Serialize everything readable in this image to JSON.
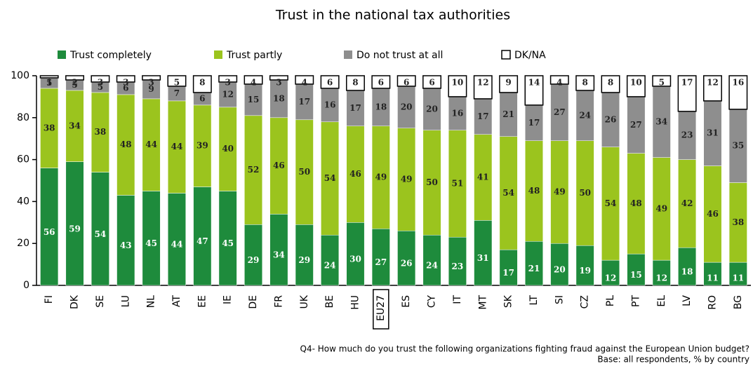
{
  "chart_data": {
    "type": "stacked_bar",
    "title": "Trust in the national tax authorities",
    "footnote": "Q4- How much do you trust the following organizations fighting fraud against the European Union budget?",
    "base": "Base: all respondents, % by country",
    "categories": [
      "FI",
      "DK",
      "SE",
      "LU",
      "NL",
      "AT",
      "EE",
      "IE",
      "DE",
      "FR",
      "UK",
      "BE",
      "HU",
      "EU27",
      "ES",
      "CY",
      "IT",
      "MT",
      "SK",
      "LT",
      "SI",
      "CZ",
      "PL",
      "PT",
      "EL",
      "LV",
      "RO",
      "BG"
    ],
    "series": [
      {
        "name": "Trust completely",
        "color": "#1e8b3c",
        "values": [
          56,
          59,
          54,
          43,
          45,
          44,
          47,
          45,
          29,
          34,
          29,
          24,
          30,
          27,
          26,
          24,
          23,
          31,
          17,
          21,
          20,
          19,
          12,
          15,
          12,
          18,
          11,
          11
        ]
      },
      {
        "name": "Trust partly",
        "color": "#9bc41e",
        "values": [
          38,
          34,
          38,
          48,
          44,
          44,
          39,
          40,
          52,
          46,
          50,
          54,
          46,
          49,
          49,
          50,
          51,
          41,
          54,
          48,
          49,
          50,
          54,
          48,
          49,
          42,
          46,
          38
        ]
      },
      {
        "name": "Do not trust at all",
        "color": "#8e8e8e",
        "values": [
          5,
          5,
          5,
          6,
          9,
          7,
          6,
          12,
          15,
          18,
          17,
          16,
          17,
          18,
          20,
          20,
          16,
          17,
          21,
          17,
          27,
          24,
          26,
          27,
          34,
          23,
          31,
          35
        ]
      },
      {
        "name": "DK/NA",
        "color": "#ffffff",
        "values": [
          1,
          2,
          3,
          3,
          3,
          5,
          8,
          3,
          4,
          3,
          4,
          6,
          8,
          6,
          6,
          6,
          10,
          12,
          9,
          14,
          4,
          8,
          8,
          10,
          5,
          17,
          12,
          16
        ]
      }
    ],
    "ylim": [
      0,
      100
    ],
    "yticks": [
      0,
      20,
      40,
      60,
      80,
      100
    ]
  }
}
